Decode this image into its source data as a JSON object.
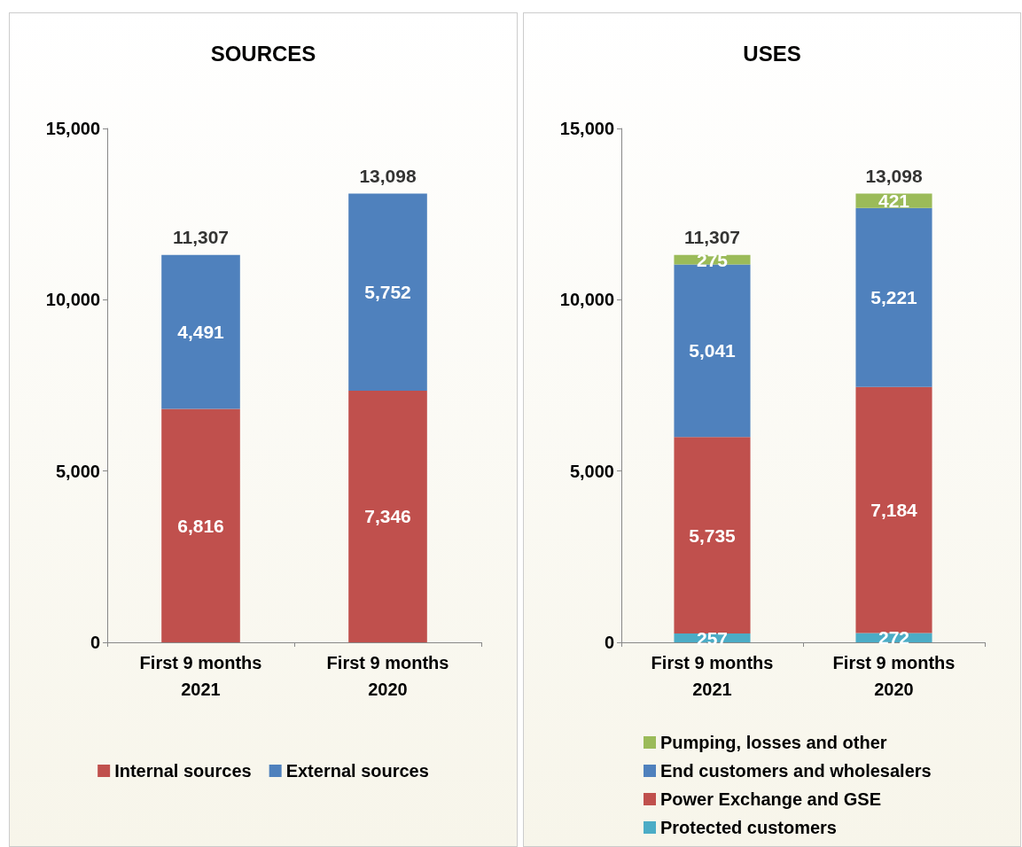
{
  "chart_data": [
    {
      "type": "bar",
      "title": "SOURCES",
      "categories": [
        "First 9 months\n2021",
        "First 9 months\n2020"
      ],
      "stacked": true,
      "series": [
        {
          "name": "Internal sources",
          "color": "#c0504d",
          "values": [
            6816,
            7346
          ],
          "value_labels": [
            "6,816",
            "7,346"
          ]
        },
        {
          "name": "External sources",
          "color": "#4f81bd",
          "values": [
            4491,
            5752
          ],
          "value_labels": [
            "4,491",
            "5,752"
          ]
        }
      ],
      "ylim": [
        0,
        15000
      ],
      "yticks": [
        {
          "value": 0,
          "label": "0"
        },
        {
          "value": 5000,
          "label": "5,000"
        },
        {
          "value": 10000,
          "label": "10,000"
        },
        {
          "value": 15000,
          "label": "15,000"
        }
      ],
      "grid": false,
      "legend": "bottom",
      "totals": [
        "11,307",
        "13,098"
      ]
    },
    {
      "type": "bar",
      "title": "USES",
      "categories": [
        "First 9 months\n2021",
        "First 9 months\n2020"
      ],
      "stacked": true,
      "series": [
        {
          "name": "Protected customers",
          "color": "#4bacc6",
          "values": [
            257,
            272
          ],
          "value_labels": [
            "257",
            "272"
          ]
        },
        {
          "name": "Power Exchange and GSE",
          "color": "#c0504d",
          "values": [
            5735,
            7184
          ],
          "value_labels": [
            "5,735",
            "7,184"
          ]
        },
        {
          "name": "End customers and wholesalers",
          "color": "#4f81bd",
          "values": [
            5041,
            5221
          ],
          "value_labels": [
            "5,041",
            "5,221"
          ]
        },
        {
          "name": "Pumping, losses and other",
          "color": "#9bbb59",
          "values": [
            275,
            421
          ],
          "value_labels": [
            "275",
            "421"
          ]
        }
      ],
      "ylim": [
        0,
        15000
      ],
      "yticks": [
        {
          "value": 0,
          "label": "0"
        },
        {
          "value": 5000,
          "label": "5,000"
        },
        {
          "value": 10000,
          "label": "10,000"
        },
        {
          "value": 15000,
          "label": "15,000"
        }
      ],
      "grid": false,
      "legend": "bottom",
      "totals": [
        "11,307",
        "13,098"
      ]
    }
  ]
}
